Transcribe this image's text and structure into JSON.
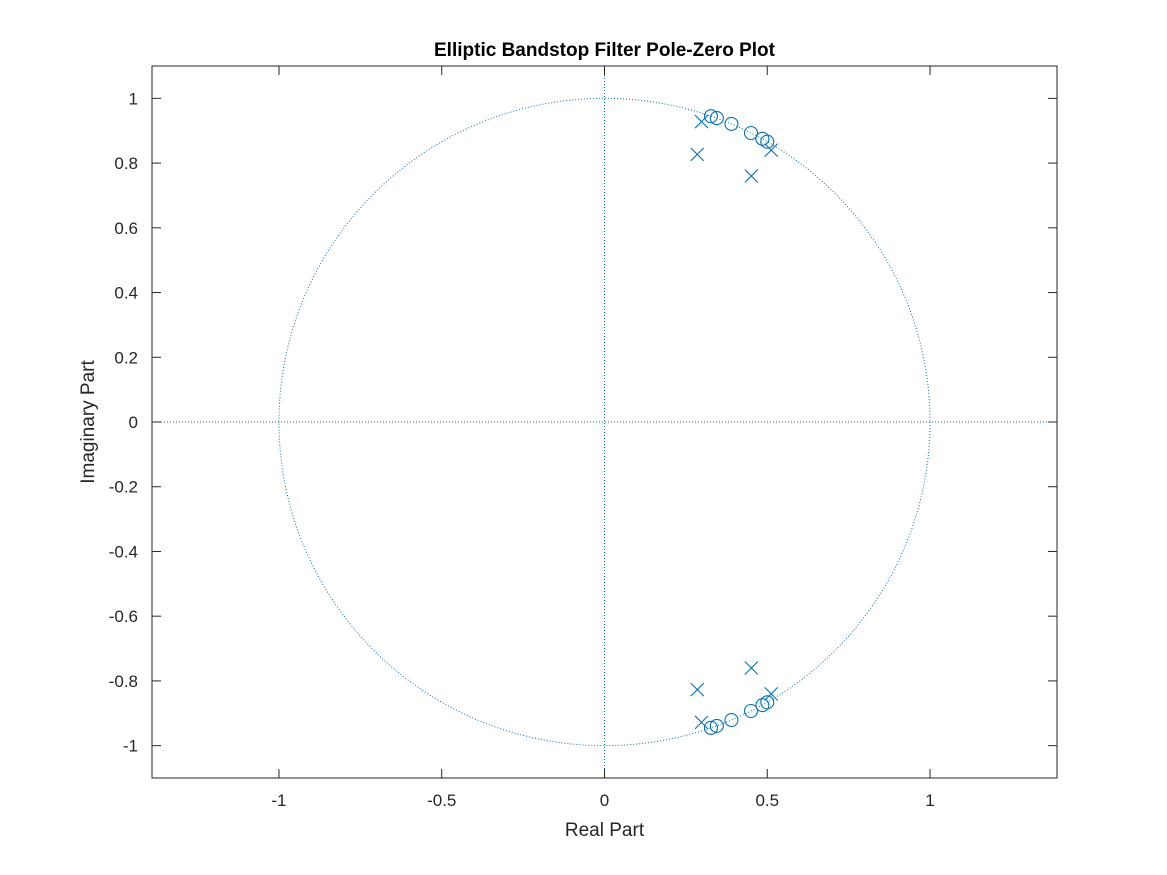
{
  "chart_data": {
    "type": "scatter",
    "title": "Elliptic Bandstop Filter Pole-Zero Plot",
    "xlabel": "Real Part",
    "ylabel": "Imaginary Part",
    "xlim": [
      -1.39,
      1.39
    ],
    "ylim": [
      -1.1,
      1.1
    ],
    "xticks": [
      -1,
      -0.5,
      0,
      0.5,
      1
    ],
    "xtick_labels": [
      "-1",
      "-0.5",
      "0",
      "0.5",
      "1"
    ],
    "yticks": [
      -1,
      -0.8,
      -0.6,
      -0.4,
      -0.2,
      0,
      0.2,
      0.4,
      0.6,
      0.8,
      1
    ],
    "ytick_labels": [
      "-1",
      "-0.8",
      "-0.6",
      "-0.4",
      "-0.2",
      "0",
      "0.2",
      "0.4",
      "0.6",
      "0.8",
      "1"
    ],
    "grid": false,
    "unit_circle": true,
    "marker_color": "#0072BD",
    "series": [
      {
        "marker": "o",
        "x": [
          0.327,
          0.345,
          0.39,
          0.45,
          0.485,
          0.5,
          0.327,
          0.345,
          0.39,
          0.45,
          0.485,
          0.5
        ],
        "y": [
          0.945,
          0.939,
          0.921,
          0.893,
          0.875,
          0.866,
          -0.945,
          -0.939,
          -0.921,
          -0.893,
          -0.875,
          -0.866
        ]
      },
      {
        "marker": "x",
        "x": [
          0.298,
          0.285,
          0.451,
          0.512,
          0.298,
          0.285,
          0.451,
          0.512
        ],
        "y": [
          0.928,
          0.827,
          0.76,
          0.84,
          -0.928,
          -0.827,
          -0.76,
          -0.84
        ]
      }
    ]
  }
}
